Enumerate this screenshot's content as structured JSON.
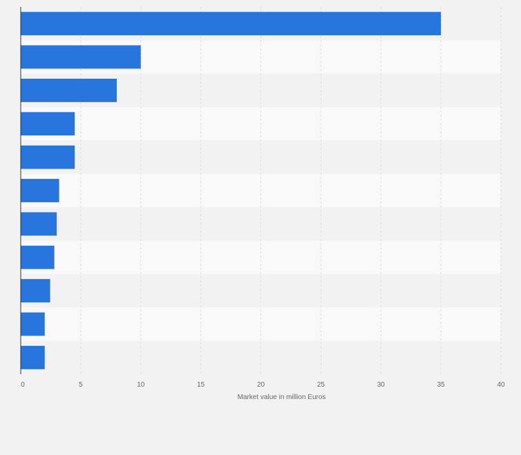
{
  "chart_data": {
    "type": "bar",
    "orientation": "horizontal",
    "categories": [
      "",
      "",
      "",
      "",
      "",
      "",
      "",
      "",
      "",
      "",
      ""
    ],
    "values": [
      35,
      10,
      8,
      4.5,
      4.5,
      3.2,
      3,
      2.8,
      2.45,
      2,
      2
    ],
    "xlabel": "Market value in million Euros",
    "ylabel": "",
    "xlim": [
      0,
      40
    ],
    "x_ticks": [
      0,
      5,
      10,
      15,
      20,
      25,
      30,
      35,
      40
    ],
    "x_tick_labels": [
      "0",
      "5",
      "10",
      "15",
      "20",
      "25",
      "30",
      "35",
      "40"
    ],
    "grid": true,
    "legend": "none",
    "colors": {
      "bar": "#2876dd",
      "band_light": "#f9f9f9",
      "band_dark": "#f2f2f2",
      "gridline": "#dcdcdc",
      "axis": "#333333",
      "text": "#666666",
      "background": "#f2f2f2"
    }
  }
}
